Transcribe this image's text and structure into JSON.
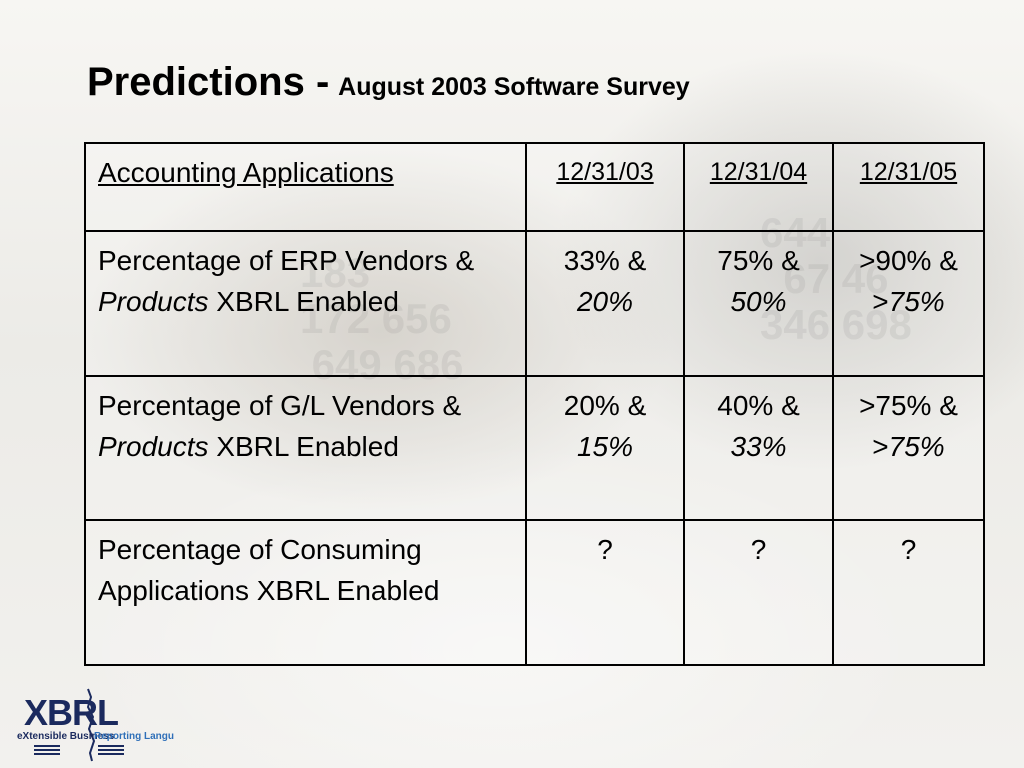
{
  "slide": {
    "title": "Predictions -",
    "subtitle": "August 2003 Software Survey"
  },
  "table": {
    "header": {
      "label": "Accounting Applications",
      "dates": [
        "12/31/03",
        "12/31/04",
        "12/31/05"
      ]
    },
    "rows": [
      {
        "label_parts": [
          "Percentage of ERP Vendors & ",
          "Products",
          " XBRL Enabled"
        ],
        "cells": [
          {
            "line1": "33% &",
            "line2": "20%"
          },
          {
            "line1": "75% &",
            "line2": "50%"
          },
          {
            "line1": ">90% &",
            "line2_prefix": ">",
            "line2": "75%"
          }
        ]
      },
      {
        "label_parts": [
          "Percentage of G/L Vendors & ",
          "Products",
          " XBRL Enabled"
        ],
        "cells": [
          {
            "line1": "20% &",
            "line2": "15%"
          },
          {
            "line1": "40% &",
            "line2": "33%"
          },
          {
            "line1": ">75% &",
            "line2_prefix": ">",
            "line2": "75%"
          }
        ]
      },
      {
        "label": "Percentage of Consuming Applications XBRL Enabled",
        "cells": [
          "?",
          "?",
          "?"
        ]
      }
    ]
  },
  "logo": {
    "wordmark": "XBRL",
    "tagline_left": "eXtensible Business",
    "tagline_right": "Reporting Language"
  },
  "colors": {
    "logo_navy": "#1b2a5e",
    "logo_blue": "#2f6fb8",
    "text": "#000000"
  }
}
